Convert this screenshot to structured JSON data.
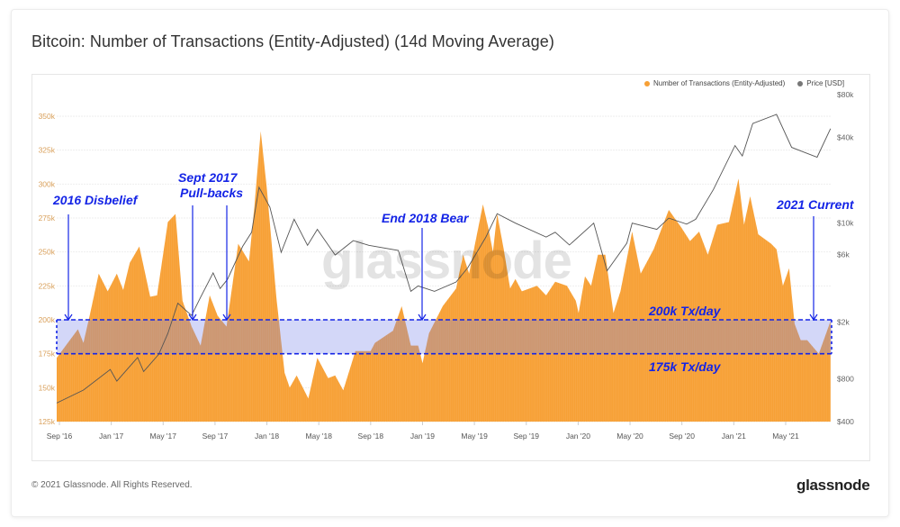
{
  "title": "Bitcoin: Number of Transactions (Entity-Adjusted) (14d Moving Average)",
  "footer": "© 2021 Glassnode. All Rights Reserved.",
  "logo": "glassnode",
  "watermark": "glassnode",
  "colors": {
    "tx": "#f7a035",
    "price": "#555555",
    "annotation": "#1424e6",
    "band_fill": "#d3d8f6"
  },
  "annotations": {
    "disbelief": "2016 Disbelief",
    "sept2017_line1": "Sept 2017",
    "sept2017_line2": "Pull-backs",
    "bear2018": "End 2018 Bear",
    "current2021": "2021 Current",
    "band_high_label": "200k Tx/day",
    "band_low_label": "175k Tx/day"
  },
  "chart_data": {
    "type": "area",
    "title": "Bitcoin: Number of Transactions (Entity-Adjusted) (14d Moving Average)",
    "legend": [
      "Number of Transactions (Entity-Adjusted)",
      "Price [USD]"
    ],
    "legend_position": "top-right",
    "grid": true,
    "x_ticks": [
      "Sep '16",
      "Jan '17",
      "May '17",
      "Sep '17",
      "Jan '18",
      "May '18",
      "Sep '18",
      "Jan '19",
      "May '19",
      "Sep '19",
      "Jan '20",
      "May '20",
      "Sep '20",
      "Jan '21",
      "May '21"
    ],
    "y_left": {
      "ticks": [
        "125k",
        "150k",
        "175k",
        "200k",
        "225k",
        "250k",
        "275k",
        "300k",
        "325k",
        "350k"
      ],
      "range": [
        125000,
        350000
      ]
    },
    "y_right": {
      "scale": "log",
      "ticks": [
        "$400",
        "$800",
        "$2k",
        "$6k",
        "$10k",
        "$40k",
        "$80k"
      ],
      "tick_values": [
        400,
        800,
        2000,
        6000,
        10000,
        40000,
        80000
      ]
    },
    "band": {
      "low": 175000,
      "high": 200000
    },
    "series": [
      {
        "name": "Number of Transactions (Entity-Adjusted)",
        "axis": "left",
        "points": [
          [
            "2016-08-25",
            172000
          ],
          [
            "2016-10-14",
            193000
          ],
          [
            "2016-10-27",
            183000
          ],
          [
            "2016-11-11",
            203000
          ],
          [
            "2016-12-02",
            234000
          ],
          [
            "2016-12-23",
            221000
          ],
          [
            "2017-01-14",
            234000
          ],
          [
            "2017-01-29",
            222000
          ],
          [
            "2017-02-14",
            242000
          ],
          [
            "2017-03-06",
            254000
          ],
          [
            "2017-04-01",
            217000
          ],
          [
            "2017-04-17",
            218000
          ],
          [
            "2017-05-12",
            272000
          ],
          [
            "2017-05-30",
            278000
          ],
          [
            "2017-06-16",
            214000
          ],
          [
            "2017-07-07",
            195000
          ],
          [
            "2017-07-28",
            181000
          ],
          [
            "2017-08-19",
            218000
          ],
          [
            "2017-09-07",
            203000
          ],
          [
            "2017-09-28",
            195000
          ],
          [
            "2017-10-15",
            234000
          ],
          [
            "2017-10-25",
            256000
          ],
          [
            "2017-11-20",
            243000
          ],
          [
            "2017-12-02",
            283000
          ],
          [
            "2017-12-17",
            339000
          ],
          [
            "2018-01-01",
            296000
          ],
          [
            "2018-01-23",
            217000
          ],
          [
            "2018-02-12",
            161000
          ],
          [
            "2018-02-24",
            150000
          ],
          [
            "2018-03-10",
            159000
          ],
          [
            "2018-04-07",
            142000
          ],
          [
            "2018-04-28",
            172000
          ],
          [
            "2018-05-23",
            157000
          ],
          [
            "2018-06-09",
            159000
          ],
          [
            "2018-06-28",
            148000
          ],
          [
            "2018-07-26",
            177000
          ],
          [
            "2018-09-01",
            177000
          ],
          [
            "2018-09-11",
            183000
          ],
          [
            "2018-10-23",
            192000
          ],
          [
            "2018-11-13",
            210000
          ],
          [
            "2018-12-04",
            181000
          ],
          [
            "2018-12-21",
            181000
          ],
          [
            "2019-01-01",
            168000
          ],
          [
            "2019-01-16",
            190000
          ],
          [
            "2019-02-18",
            210000
          ],
          [
            "2019-03-19",
            223000
          ],
          [
            "2019-04-05",
            248000
          ],
          [
            "2019-04-19",
            234000
          ],
          [
            "2019-05-21",
            285000
          ],
          [
            "2019-06-03",
            268000
          ],
          [
            "2019-06-14",
            250000
          ],
          [
            "2019-06-24",
            278000
          ],
          [
            "2019-07-09",
            252000
          ],
          [
            "2019-07-24",
            223000
          ],
          [
            "2019-08-06",
            230000
          ],
          [
            "2019-08-21",
            221000
          ],
          [
            "2019-09-26",
            225000
          ],
          [
            "2019-10-17",
            218000
          ],
          [
            "2019-11-08",
            228000
          ],
          [
            "2019-12-05",
            225000
          ],
          [
            "2019-12-26",
            214000
          ],
          [
            "2020-01-02",
            205000
          ],
          [
            "2020-01-17",
            232000
          ],
          [
            "2020-02-01",
            225000
          ],
          [
            "2020-02-17",
            248000
          ],
          [
            "2020-03-04",
            248000
          ],
          [
            "2020-03-23",
            205000
          ],
          [
            "2020-04-09",
            221000
          ],
          [
            "2020-05-06",
            265000
          ],
          [
            "2020-05-26",
            234000
          ],
          [
            "2020-06-26",
            252000
          ],
          [
            "2020-07-31",
            281000
          ],
          [
            "2020-08-30",
            268000
          ],
          [
            "2020-09-20",
            258000
          ],
          [
            "2020-10-11",
            265000
          ],
          [
            "2020-11-01",
            248000
          ],
          [
            "2020-11-23",
            270000
          ],
          [
            "2020-12-20",
            272000
          ],
          [
            "2021-01-12",
            304000
          ],
          [
            "2021-01-25",
            270000
          ],
          [
            "2021-02-09",
            291000
          ],
          [
            "2021-02-28",
            263000
          ],
          [
            "2021-03-28",
            256000
          ],
          [
            "2021-04-10",
            252000
          ],
          [
            "2021-04-25",
            225000
          ],
          [
            "2021-05-09",
            238000
          ],
          [
            "2021-05-22",
            197000
          ],
          [
            "2021-06-06",
            185000
          ],
          [
            "2021-06-21",
            185000
          ],
          [
            "2021-07-18",
            175000
          ],
          [
            "2021-08-15",
            199000
          ]
        ]
      },
      {
        "name": "Price [USD]",
        "axis": "right",
        "points": [
          [
            "2016-08-25",
            540
          ],
          [
            "2016-10-27",
            667
          ],
          [
            "2016-12-29",
            930
          ],
          [
            "2017-01-14",
            770
          ],
          [
            "2017-03-02",
            1130
          ],
          [
            "2017-03-16",
            900
          ],
          [
            "2017-04-21",
            1190
          ],
          [
            "2017-05-12",
            1670
          ],
          [
            "2017-06-05",
            2720
          ],
          [
            "2017-07-07",
            2230
          ],
          [
            "2017-07-28",
            3000
          ],
          [
            "2017-08-27",
            4450
          ],
          [
            "2017-09-13",
            3450
          ],
          [
            "2017-09-30",
            4000
          ],
          [
            "2017-11-05",
            6830
          ],
          [
            "2017-11-26",
            8600
          ],
          [
            "2017-12-13",
            17800
          ],
          [
            "2018-01-08",
            12900
          ],
          [
            "2018-02-04",
            6200
          ],
          [
            "2018-03-04",
            10600
          ],
          [
            "2018-04-05",
            6960
          ],
          [
            "2018-04-28",
            9000
          ],
          [
            "2018-06-09",
            5940
          ],
          [
            "2018-07-21",
            7500
          ],
          [
            "2018-08-27",
            6960
          ],
          [
            "2018-11-05",
            6400
          ],
          [
            "2018-12-04",
            3300
          ],
          [
            "2018-12-21",
            3600
          ],
          [
            "2019-01-29",
            3300
          ],
          [
            "2019-03-19",
            3840
          ],
          [
            "2019-04-16",
            4840
          ],
          [
            "2019-05-28",
            7960
          ],
          [
            "2019-06-24",
            11600
          ],
          [
            "2019-08-06",
            9960
          ],
          [
            "2019-10-17",
            7960
          ],
          [
            "2019-11-08",
            8600
          ],
          [
            "2019-12-11",
            7000
          ],
          [
            "2020-02-07",
            9960
          ],
          [
            "2020-03-08",
            4600
          ],
          [
            "2020-04-24",
            7200
          ],
          [
            "2020-05-06",
            9960
          ],
          [
            "2020-07-03",
            9000
          ],
          [
            "2020-07-31",
            10800
          ],
          [
            "2020-09-12",
            9800
          ],
          [
            "2020-10-03",
            10600
          ],
          [
            "2020-11-14",
            17200
          ],
          [
            "2021-01-04",
            35000
          ],
          [
            "2021-01-21",
            29600
          ],
          [
            "2021-02-15",
            50000
          ],
          [
            "2021-04-10",
            58000
          ],
          [
            "2021-05-15",
            34000
          ],
          [
            "2021-07-14",
            29000
          ],
          [
            "2021-08-15",
            46000
          ]
        ]
      }
    ]
  }
}
